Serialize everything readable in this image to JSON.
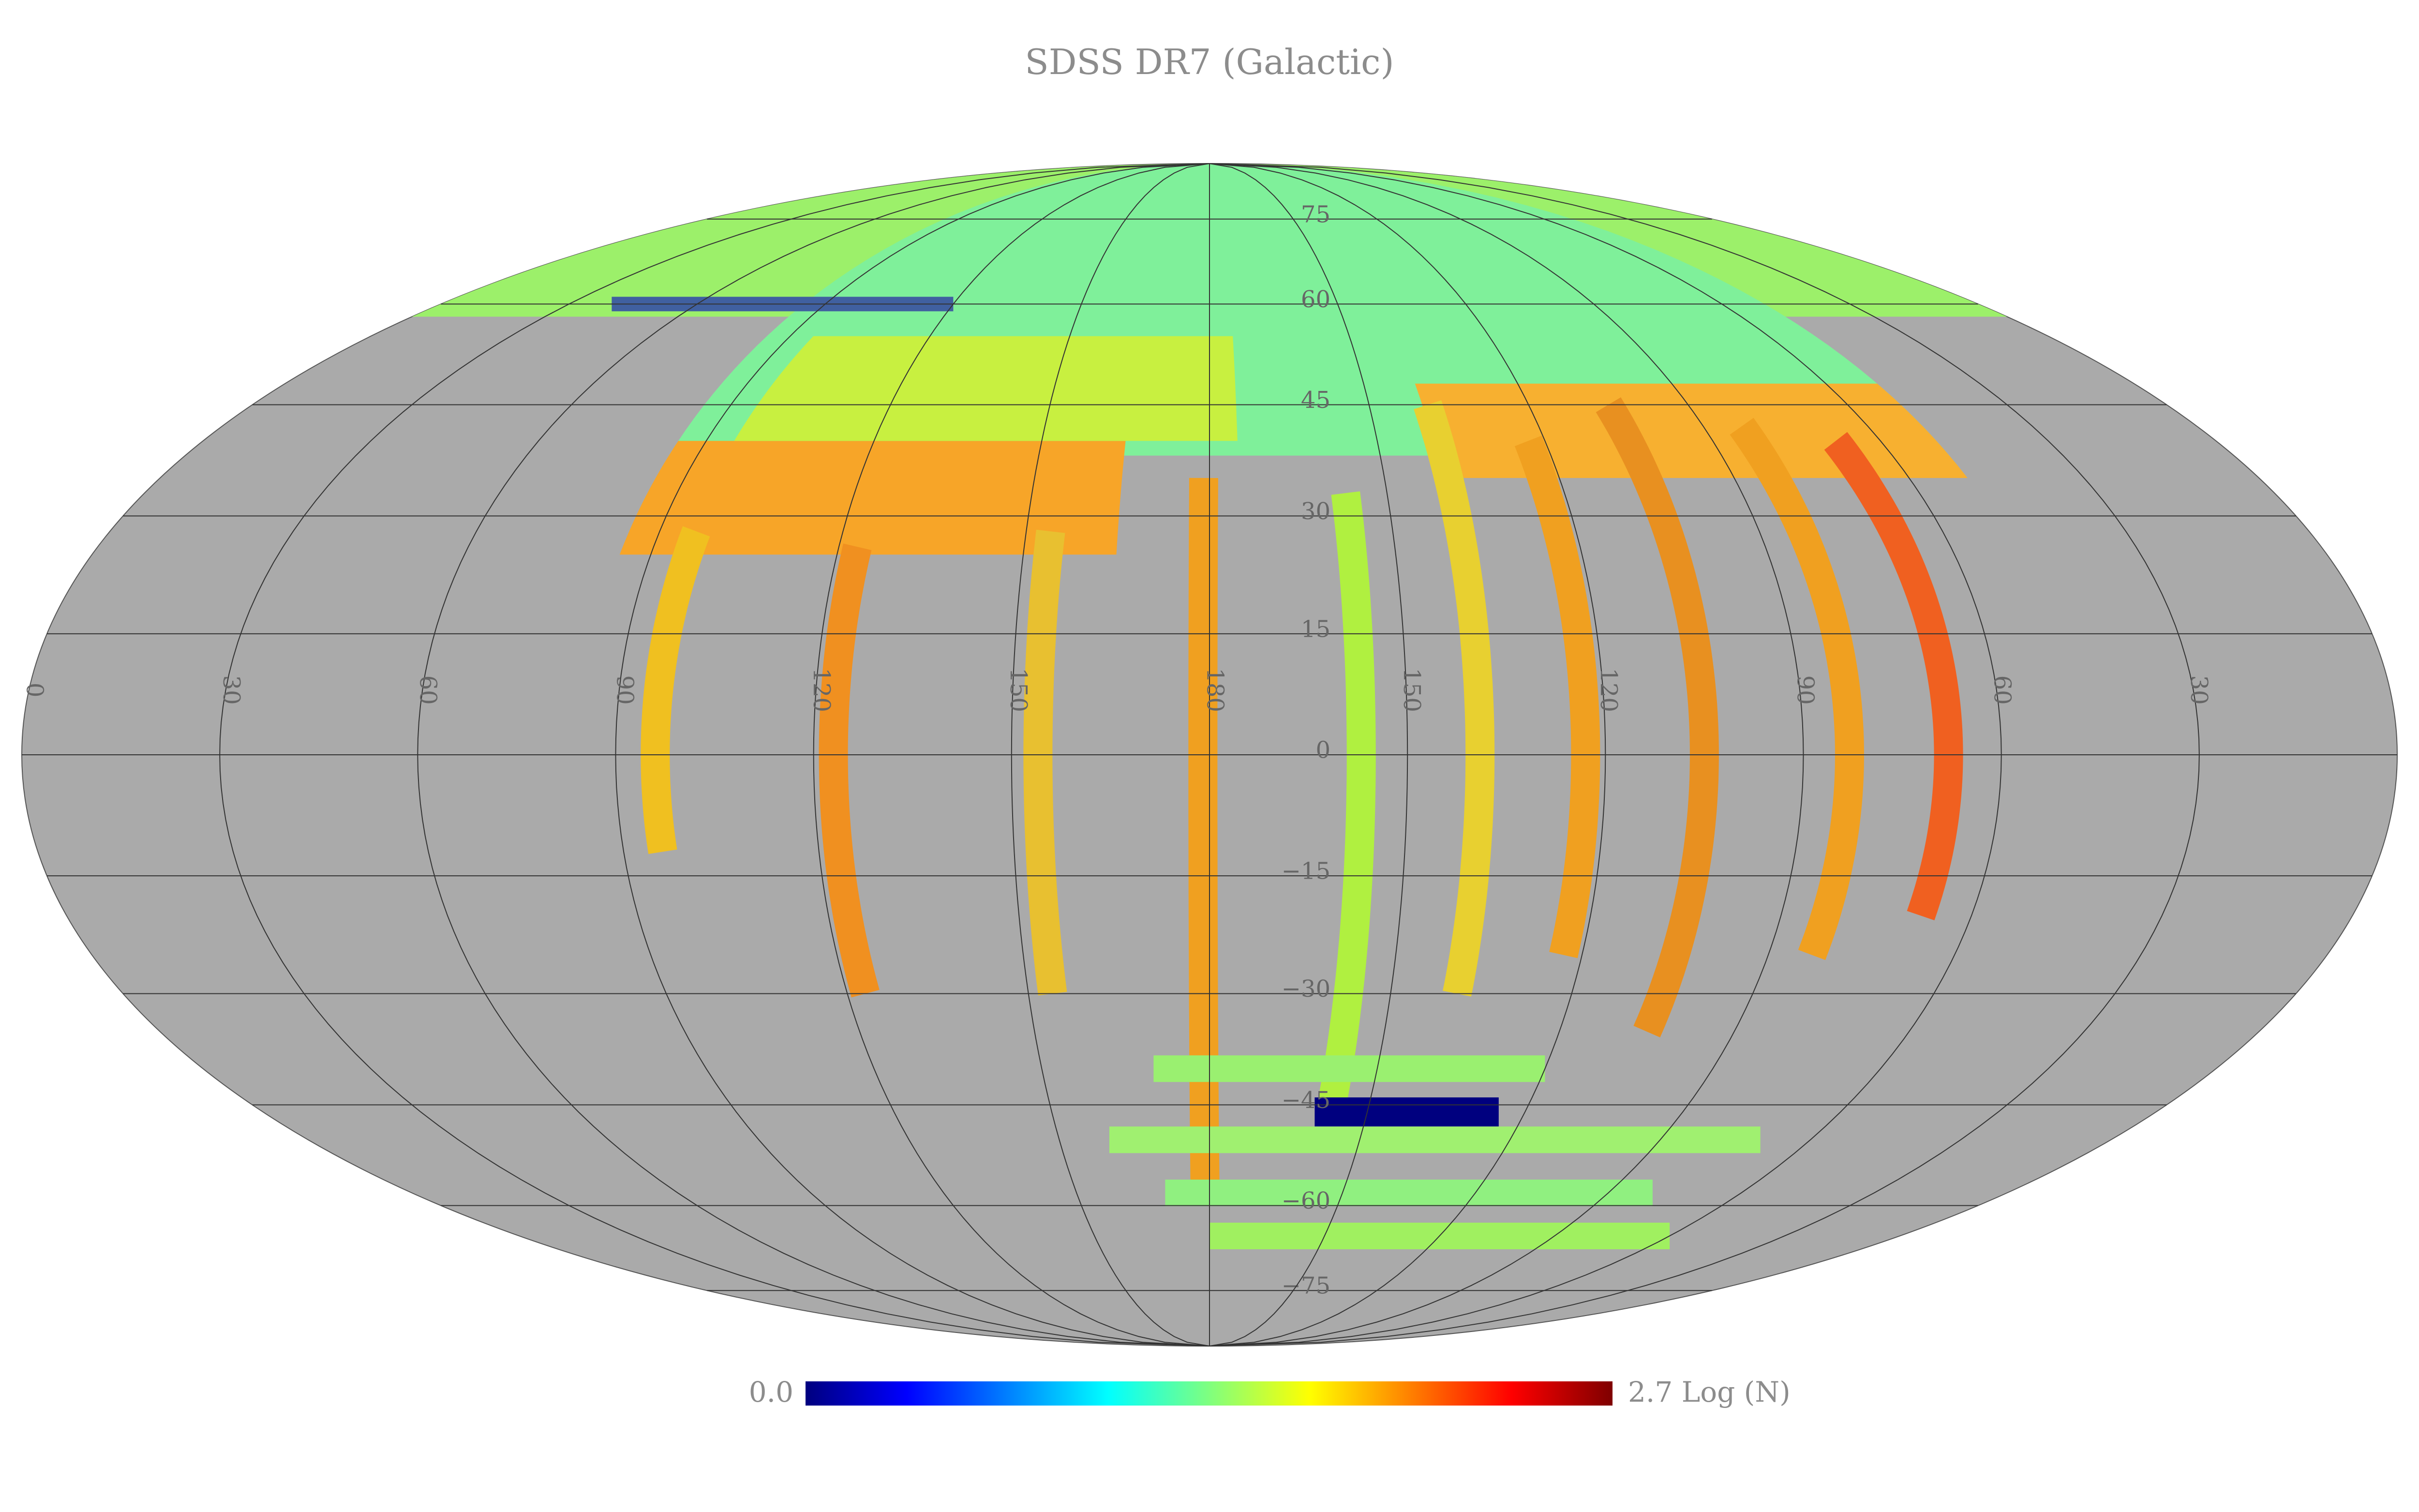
{
  "title": "SDSS DR7 (Galactic)",
  "colorbar": {
    "min": {
      "value": 0,
      "label": "0.0"
    },
    "max": {
      "value": 2.7,
      "label": "2.7"
    },
    "unit": "Log (N)"
  },
  "longitude_labels": [
    "0",
    "30",
    "60",
    "90",
    "120",
    "150",
    "180",
    "150",
    "120",
    "90",
    "60",
    "30"
  ],
  "latitude_labels": [
    "75",
    "60",
    "45",
    "30",
    "15",
    "0",
    "−15",
    "−30",
    "−45",
    "−60",
    "−75"
  ]
}
